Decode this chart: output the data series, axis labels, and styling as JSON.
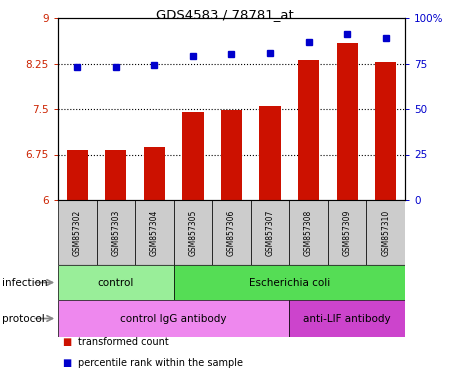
{
  "title": "GDS4583 / 78781_at",
  "samples": [
    "GSM857302",
    "GSM857303",
    "GSM857304",
    "GSM857305",
    "GSM857306",
    "GSM857307",
    "GSM857308",
    "GSM857309",
    "GSM857310"
  ],
  "red_values": [
    6.82,
    6.82,
    6.87,
    7.45,
    7.48,
    7.55,
    8.3,
    8.58,
    8.28
  ],
  "blue_values": [
    73,
    73,
    74,
    79,
    80,
    81,
    87,
    91,
    89
  ],
  "ylim_left": [
    6,
    9
  ],
  "ylim_right": [
    0,
    100
  ],
  "yticks_left": [
    6,
    6.75,
    7.5,
    8.25,
    9
  ],
  "yticks_right": [
    0,
    25,
    50,
    75,
    100
  ],
  "ytick_labels_left": [
    "6",
    "6.75",
    "7.5",
    "8.25",
    "9"
  ],
  "ytick_labels_right": [
    "0",
    "25",
    "50",
    "75",
    "100%"
  ],
  "hlines": [
    6.75,
    7.5,
    8.25
  ],
  "bar_color": "#cc1100",
  "dot_color": "#0000cc",
  "bar_width": 0.55,
  "infection_groups": [
    {
      "label": "control",
      "start": 0,
      "end": 3,
      "color": "#99ee99"
    },
    {
      "label": "Escherichia coli",
      "start": 3,
      "end": 9,
      "color": "#55dd55"
    }
  ],
  "protocol_groups": [
    {
      "label": "control IgG antibody",
      "start": 0,
      "end": 6,
      "color": "#ee88ee"
    },
    {
      "label": "anti-LIF antibody",
      "start": 6,
      "end": 9,
      "color": "#cc44cc"
    }
  ],
  "legend_items": [
    {
      "label": "transformed count",
      "color": "#cc1100"
    },
    {
      "label": "percentile rank within the sample",
      "color": "#0000cc"
    }
  ],
  "sample_bg": "#cccccc",
  "plot_bg": "#ffffff",
  "fig_bg": "#ffffff"
}
